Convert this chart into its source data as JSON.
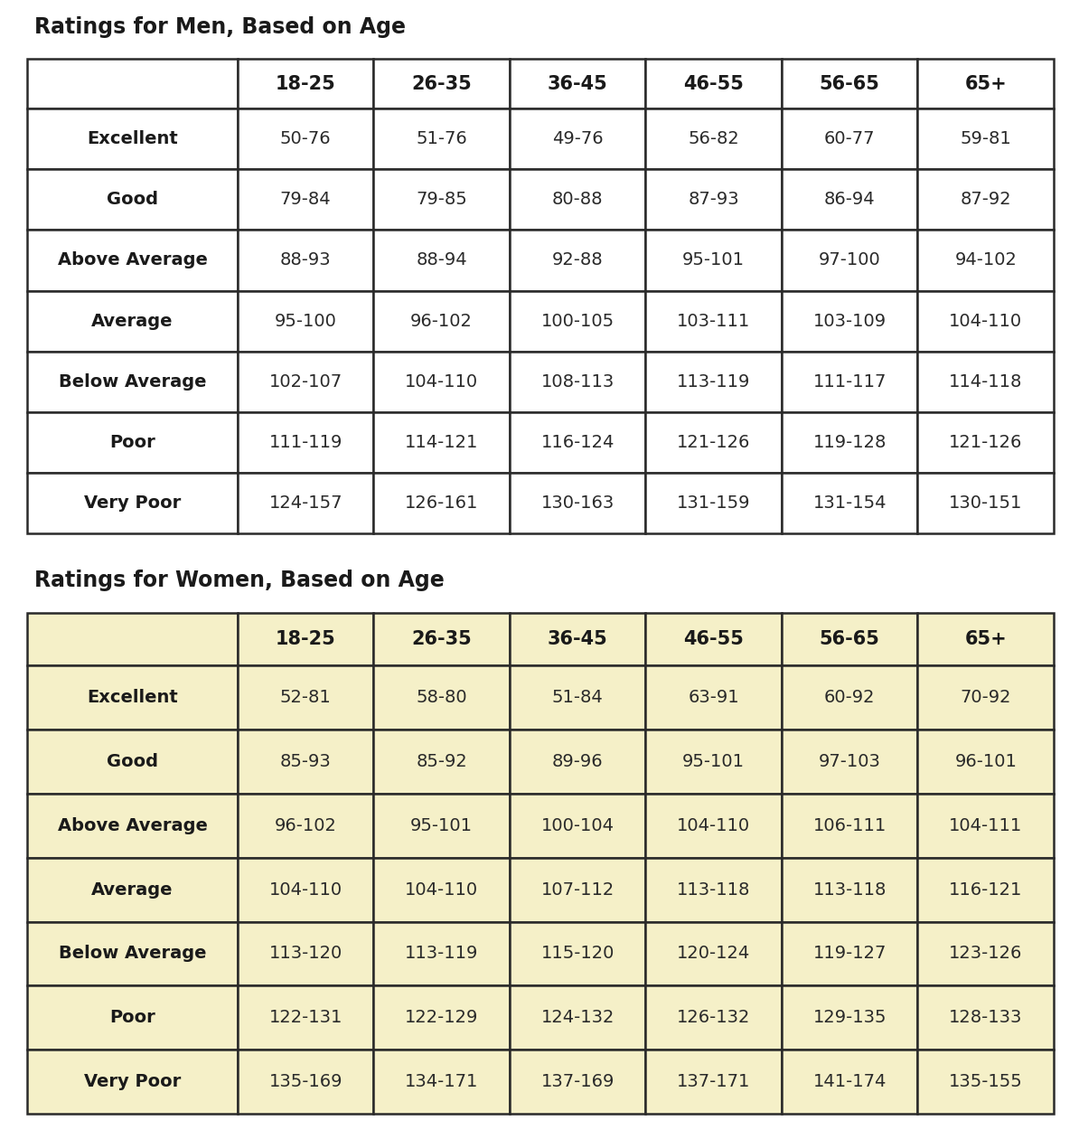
{
  "men_title": "Ratings for Men, Based on Age",
  "women_title": "Ratings for Women, Based on Age",
  "age_groups": [
    "18-25",
    "26-35",
    "36-45",
    "46-55",
    "56-65",
    "65+"
  ],
  "categories": [
    "Excellent",
    "Good",
    "Above Average",
    "Average",
    "Below Average",
    "Poor",
    "Very Poor"
  ],
  "men_data": [
    [
      "50-76",
      "51-76",
      "49-76",
      "56-82",
      "60-77",
      "59-81"
    ],
    [
      "79-84",
      "79-85",
      "80-88",
      "87-93",
      "86-94",
      "87-92"
    ],
    [
      "88-93",
      "88-94",
      "92-88",
      "95-101",
      "97-100",
      "94-102"
    ],
    [
      "95-100",
      "96-102",
      "100-105",
      "103-111",
      "103-109",
      "104-110"
    ],
    [
      "102-107",
      "104-110",
      "108-113",
      "113-119",
      "111-117",
      "114-118"
    ],
    [
      "111-119",
      "114-121",
      "116-124",
      "121-126",
      "119-128",
      "121-126"
    ],
    [
      "124-157",
      "126-161",
      "130-163",
      "131-159",
      "131-154",
      "130-151"
    ]
  ],
  "women_data": [
    [
      "52-81",
      "58-80",
      "51-84",
      "63-91",
      "60-92",
      "70-92"
    ],
    [
      "85-93",
      "85-92",
      "89-96",
      "95-101",
      "97-103",
      "96-101"
    ],
    [
      "96-102",
      "95-101",
      "100-104",
      "104-110",
      "106-111",
      "104-111"
    ],
    [
      "104-110",
      "104-110",
      "107-112",
      "113-118",
      "113-118",
      "116-121"
    ],
    [
      "113-120",
      "113-119",
      "115-120",
      "120-124",
      "119-127",
      "123-126"
    ],
    [
      "122-131",
      "122-129",
      "124-132",
      "126-132",
      "129-135",
      "128-133"
    ],
    [
      "135-169",
      "134-171",
      "137-169",
      "137-171",
      "141-174",
      "135-155"
    ]
  ],
  "bg_white": "#ffffff",
  "bg_yellow": "#f5f0c8",
  "title_color": "#1a1a1a",
  "border_color": "#2a2a2a",
  "header_bold_color": "#1a1a1a",
  "cat_bold_color": "#1a1a1a",
  "data_color": "#2a2a2a",
  "title_fontsize": 17,
  "header_fontsize": 15,
  "cat_fontsize": 14,
  "data_fontsize": 14,
  "fig_width": 11.94,
  "fig_height": 12.5,
  "dpi": 100
}
